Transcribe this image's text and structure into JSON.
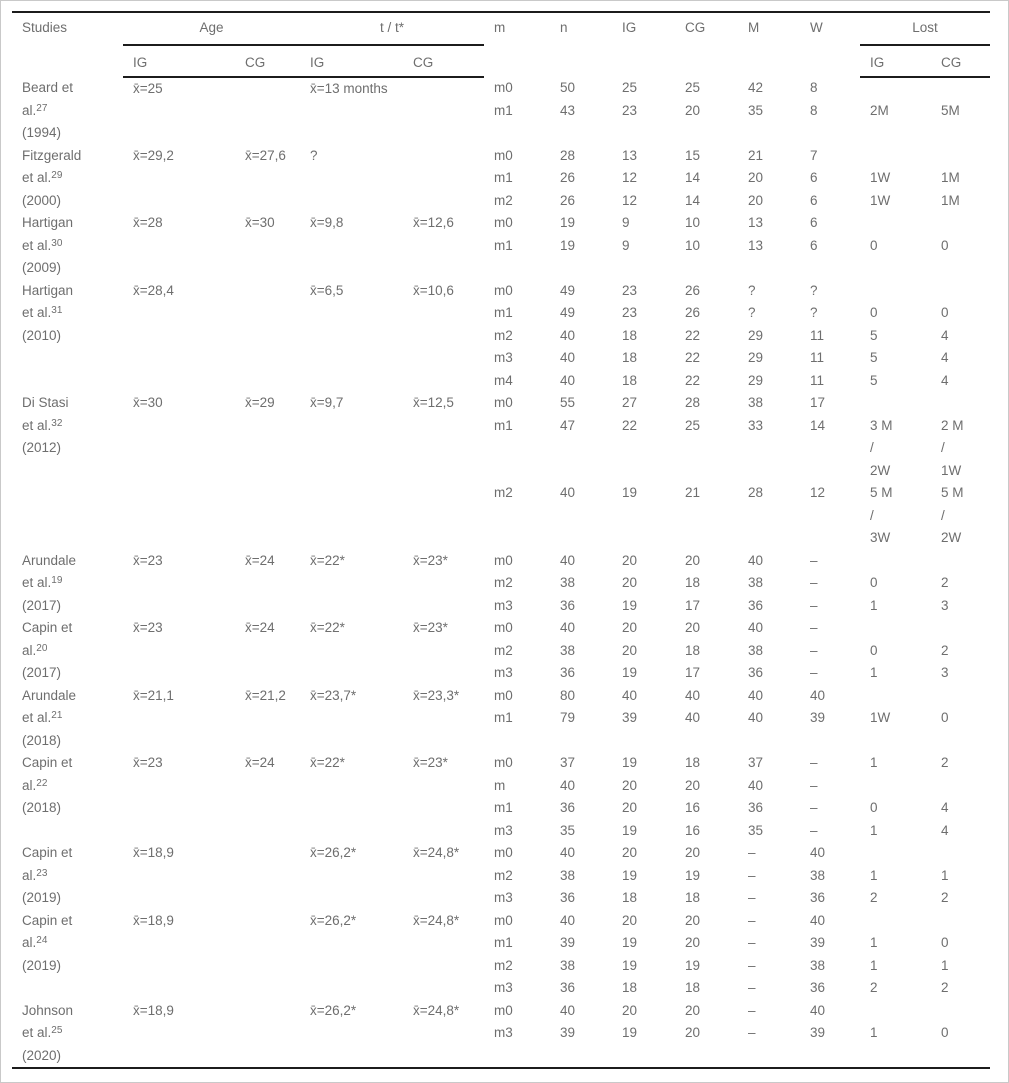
{
  "table": {
    "headers": {
      "studies": "Studies",
      "age": "Age",
      "t": "t / t*",
      "m": "m",
      "n": "n",
      "ig": "IG",
      "cg": "CG",
      "men": "M",
      "women": "W",
      "lost": "Lost"
    },
    "subheaders": {
      "age_ig": "IG",
      "age_cg": "CG",
      "t_ig": "IG",
      "t_cg": "CG",
      "lost_ig": "IG",
      "lost_cg": "CG"
    },
    "row_columns": [
      "m",
      "n",
      "IG",
      "CG",
      "M",
      "W",
      "Lost IG",
      "Lost CG"
    ],
    "studies": [
      {
        "name_line1": "Beard et",
        "name_line2": "al.",
        "ref": "27",
        "year": "(1994)",
        "age_ig": "x̄=25",
        "age_cg": "",
        "t_ig": "x̄=13 months",
        "t_cg": "",
        "rows": [
          [
            "m0",
            "50",
            "25",
            "25",
            "42",
            "8",
            "",
            ""
          ],
          [
            "m1",
            "43",
            "23",
            "20",
            "35",
            "8",
            "2M",
            "5M"
          ]
        ]
      },
      {
        "name_line1": "Fitzgerald",
        "name_line2": "et al.",
        "ref": "29",
        "year": "(2000)",
        "age_ig": "x̄=29,2",
        "age_cg": "x̄=27,6",
        "t_ig": "?",
        "t_cg": "",
        "rows": [
          [
            "m0",
            "28",
            "13",
            "15",
            "21",
            "7",
            "",
            ""
          ],
          [
            "m1",
            "26",
            "12",
            "14",
            "20",
            "6",
            "1W",
            "1M"
          ],
          [
            "m2",
            "26",
            "12",
            "14",
            "20",
            "6",
            "1W",
            "1M"
          ]
        ]
      },
      {
        "name_line1": "Hartigan",
        "name_line2": "et al.",
        "ref": "30",
        "year": "(2009)",
        "age_ig": "x̄=28",
        "age_cg": "x̄=30",
        "t_ig": "x̄=9,8",
        "t_cg": "x̄=12,6",
        "rows": [
          [
            "m0",
            "19",
            "9",
            "10",
            "13",
            "6",
            "",
            ""
          ],
          [
            "m1",
            "19",
            "9",
            "10",
            "13",
            "6",
            "0",
            "0"
          ]
        ]
      },
      {
        "name_line1": "Hartigan",
        "name_line2": "et al.",
        "ref": "31",
        "year": "(2010)",
        "age_ig": "x̄=28,4",
        "age_cg": "",
        "t_ig": "x̄=6,5",
        "t_cg": "x̄=10,6",
        "rows": [
          [
            "m0",
            "49",
            "23",
            "26",
            "?",
            "?",
            "",
            ""
          ],
          [
            "m1",
            "49",
            "23",
            "26",
            "?",
            "?",
            "0",
            "0"
          ],
          [
            "m2",
            "40",
            "18",
            "22",
            "29",
            "11",
            "5",
            "4"
          ],
          [
            "m3",
            "40",
            "18",
            "22",
            "29",
            "11",
            "5",
            "4"
          ],
          [
            "m4",
            "40",
            "18",
            "22",
            "29",
            "11",
            "5",
            "4"
          ]
        ]
      },
      {
        "name_line1": "Di Stasi",
        "name_line2": "et al.",
        "ref": "32",
        "year": "(2012)",
        "age_ig": "x̄=30",
        "age_cg": "x̄=29",
        "t_ig": "x̄=9,7",
        "t_cg": "x̄=12,5",
        "rows": [
          [
            "m0",
            "55",
            "27",
            "28",
            "38",
            "17",
            "",
            ""
          ],
          [
            "m1",
            "47",
            "22",
            "25",
            "33",
            "14",
            [
              "3 M",
              "/",
              "2W"
            ],
            [
              "2 M",
              "/",
              "1W"
            ]
          ],
          [
            "m2",
            "40",
            "19",
            "21",
            "28",
            "12",
            [
              "5 M",
              "/",
              "3W"
            ],
            [
              "5 M",
              "/",
              "2W"
            ]
          ]
        ]
      },
      {
        "name_line1": "Arundale",
        "name_line2": "et al.",
        "ref": "19",
        "year": "(2017)",
        "age_ig": "x̄=23",
        "age_cg": "x̄=24",
        "t_ig": "x̄=22*",
        "t_cg": "x̄=23*",
        "rows": [
          [
            "m0",
            "40",
            "20",
            "20",
            "40",
            "–",
            "",
            ""
          ],
          [
            "m2",
            "38",
            "20",
            "18",
            "38",
            "–",
            "0",
            "2"
          ],
          [
            "m3",
            "36",
            "19",
            "17",
            "36",
            "–",
            "1",
            "3"
          ]
        ]
      },
      {
        "name_line1": "Capin et",
        "name_line2": "al.",
        "ref": "20",
        "year": "(2017)",
        "age_ig": "x̄=23",
        "age_cg": "x̄=24",
        "t_ig": "x̄=22*",
        "t_cg": "x̄=23*",
        "rows": [
          [
            "m0",
            "40",
            "20",
            "20",
            "40",
            "–",
            "",
            ""
          ],
          [
            "m2",
            "38",
            "20",
            "18",
            "38",
            "–",
            "0",
            "2"
          ],
          [
            "m3",
            "36",
            "19",
            "17",
            "36",
            "–",
            "1",
            "3"
          ]
        ]
      },
      {
        "name_line1": "Arundale",
        "name_line2": "et al.",
        "ref": "21",
        "year": "(2018)",
        "age_ig": "x̄=21,1",
        "age_cg": "x̄=21,2",
        "t_ig": "x̄=23,7*",
        "t_cg": "x̄=23,3*",
        "rows": [
          [
            "m0",
            "80",
            "40",
            "40",
            "40",
            "40",
            "",
            ""
          ],
          [
            "m1",
            "79",
            "39",
            "40",
            "40",
            "39",
            "1W",
            "0"
          ]
        ]
      },
      {
        "name_line1": "Capin et",
        "name_line2": "al.",
        "ref": "22",
        "year": "(2018)",
        "age_ig": "x̄=23",
        "age_cg": "x̄=24",
        "t_ig": "x̄=22*",
        "t_cg": "x̄=23*",
        "rows": [
          [
            "m0",
            "37",
            "19",
            "18",
            "37",
            "–",
            "1",
            "2"
          ],
          [
            "m",
            "40",
            "20",
            "20",
            "40",
            "–",
            "",
            ""
          ],
          [
            "m1",
            "36",
            "20",
            "16",
            "36",
            "–",
            "0",
            "4"
          ],
          [
            "m3",
            "35",
            "19",
            "16",
            "35",
            "–",
            "1",
            "4"
          ]
        ]
      },
      {
        "name_line1": "Capin et",
        "name_line2": "al.",
        "ref": "23",
        "year": "(2019)",
        "age_ig": "x̄=18,9",
        "age_cg": "",
        "t_ig": "x̄=26,2*",
        "t_cg": "x̄=24,8*",
        "rows": [
          [
            "m0",
            "40",
            "20",
            "20",
            "–",
            "40",
            "",
            ""
          ],
          [
            "m2",
            "38",
            "19",
            "19",
            "–",
            "38",
            "1",
            "1"
          ],
          [
            "m3",
            "36",
            "18",
            "18",
            "–",
            "36",
            "2",
            "2"
          ]
        ]
      },
      {
        "name_line1": "Capin et",
        "name_line2": "al.",
        "ref": "24",
        "year": "(2019)",
        "age_ig": "x̄=18,9",
        "age_cg": "",
        "t_ig": "x̄=26,2*",
        "t_cg": "x̄=24,8*",
        "rows": [
          [
            "m0",
            "40",
            "20",
            "20",
            "–",
            "40",
            "",
            ""
          ],
          [
            "m1",
            "39",
            "19",
            "20",
            "–",
            "39",
            "1",
            "0"
          ],
          [
            "m2",
            "38",
            "19",
            "19",
            "–",
            "38",
            "1",
            "1"
          ],
          [
            "m3",
            "36",
            "18",
            "18",
            "–",
            "36",
            "2",
            "2"
          ]
        ]
      },
      {
        "name_line1": "Johnson",
        "name_line2": "et al.",
        "ref": "25",
        "year": "(2020)",
        "age_ig": "x̄=18,9",
        "age_cg": "",
        "t_ig": "x̄=26,2*",
        "t_cg": "x̄=24,8*",
        "rows": [
          [
            "m0",
            "40",
            "20",
            "20",
            "–",
            "40",
            "",
            ""
          ],
          [
            "m3",
            "39",
            "19",
            "20",
            "–",
            "39",
            "1",
            "0"
          ]
        ]
      }
    ]
  }
}
